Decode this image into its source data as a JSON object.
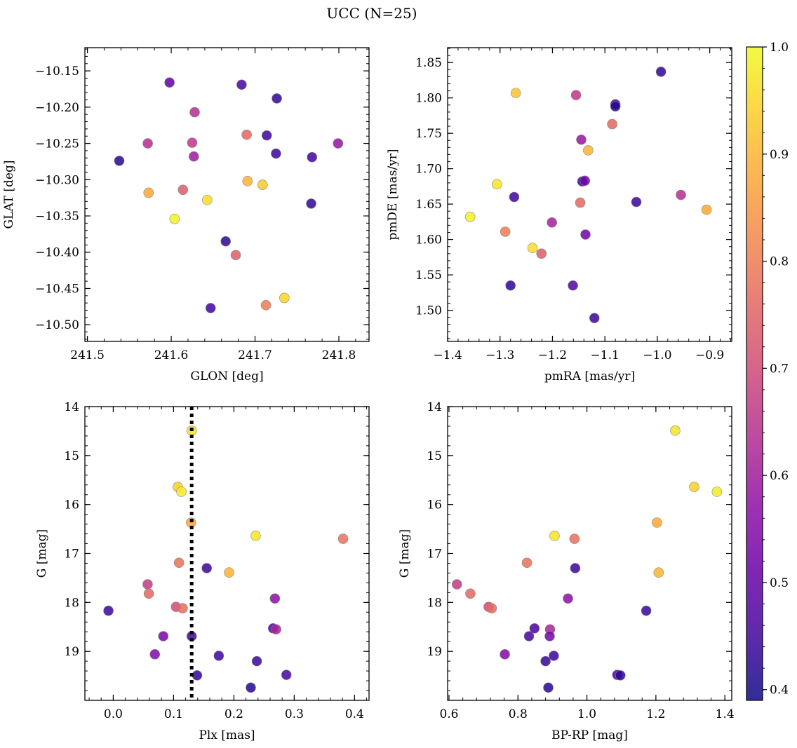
{
  "title": "UCC (N=25)",
  "colorbar": {
    "colormap": "plasma",
    "vmin": 0.39,
    "vmax": 1.0,
    "ticks": [
      0.4,
      0.5,
      0.6,
      0.7,
      0.8,
      0.9,
      1.0
    ],
    "tick_labels": [
      "0.4",
      "0.5",
      "0.6",
      "0.7",
      "0.8",
      "0.9",
      "1.0"
    ]
  },
  "chart_data": [
    {
      "type": "scatter",
      "name": "glon-glat",
      "xlabel": "GLON [deg]",
      "ylabel": "GLAT [deg]",
      "xlim": [
        241.497,
        241.836
      ],
      "ylim": [
        -10.523,
        -10.118
      ],
      "xticks": [
        241.5,
        241.6,
        241.7,
        241.8
      ],
      "xtick_labels": [
        "241.5",
        "241.6",
        "241.7",
        "241.8"
      ],
      "yticks": [
        -10.15,
        -10.2,
        -10.25,
        -10.3,
        -10.35,
        -10.4,
        -10.45,
        -10.5
      ],
      "ytick_labels": [
        "−10.15",
        "−10.20",
        "−10.25",
        "−10.30",
        "−10.35",
        "−10.40",
        "−10.45",
        "−10.50"
      ],
      "points": [
        {
          "x": 241.538,
          "y": -10.274,
          "c": 0.42
        },
        {
          "x": 241.598,
          "y": -10.166,
          "c": 0.5
        },
        {
          "x": 241.684,
          "y": -10.169,
          "c": 0.46
        },
        {
          "x": 241.726,
          "y": -10.188,
          "c": 0.43
        },
        {
          "x": 241.628,
          "y": -10.207,
          "c": 0.64
        },
        {
          "x": 241.572,
          "y": -10.25,
          "c": 0.64
        },
        {
          "x": 241.625,
          "y": -10.249,
          "c": 0.66
        },
        {
          "x": 241.627,
          "y": -10.268,
          "c": 0.6
        },
        {
          "x": 241.69,
          "y": -10.238,
          "c": 0.76
        },
        {
          "x": 241.714,
          "y": -10.239,
          "c": 0.45
        },
        {
          "x": 241.725,
          "y": -10.264,
          "c": 0.44
        },
        {
          "x": 241.768,
          "y": -10.269,
          "c": 0.45
        },
        {
          "x": 241.799,
          "y": -10.25,
          "c": 0.58
        },
        {
          "x": 241.573,
          "y": -10.318,
          "c": 0.88
        },
        {
          "x": 241.614,
          "y": -10.314,
          "c": 0.74
        },
        {
          "x": 241.691,
          "y": -10.302,
          "c": 0.9
        },
        {
          "x": 241.709,
          "y": -10.307,
          "c": 0.93
        },
        {
          "x": 241.643,
          "y": -10.328,
          "c": 0.96
        },
        {
          "x": 241.604,
          "y": -10.354,
          "c": 0.99
        },
        {
          "x": 241.767,
          "y": -10.333,
          "c": 0.43
        },
        {
          "x": 241.665,
          "y": -10.385,
          "c": 0.43
        },
        {
          "x": 241.677,
          "y": -10.404,
          "c": 0.74
        },
        {
          "x": 241.647,
          "y": -10.477,
          "c": 0.45
        },
        {
          "x": 241.713,
          "y": -10.473,
          "c": 0.8
        },
        {
          "x": 241.735,
          "y": -10.463,
          "c": 0.95
        }
      ]
    },
    {
      "type": "scatter",
      "name": "pmra-pmde",
      "xlabel": "pmRA [mas/yr]",
      "ylabel": "pmDE [mas/yr]",
      "xlim": [
        -1.4,
        -0.858
      ],
      "ylim": [
        1.456,
        1.871
      ],
      "xticks": [
        -1.4,
        -1.3,
        -1.2,
        -1.1,
        -1.0,
        -0.9
      ],
      "xtick_labels": [
        "−1.4",
        "−1.3",
        "−1.2",
        "−1.1",
        "−1.0",
        "−0.9"
      ],
      "yticks": [
        1.5,
        1.55,
        1.6,
        1.65,
        1.7,
        1.75,
        1.8,
        1.85
      ],
      "ytick_labels": [
        "1.50",
        "1.55",
        "1.60",
        "1.65",
        "1.70",
        "1.75",
        "1.80",
        "1.85"
      ],
      "points": [
        {
          "x": -0.993,
          "y": 1.837,
          "c": 0.43
        },
        {
          "x": -1.27,
          "y": 1.807,
          "c": 0.92
        },
        {
          "x": -1.155,
          "y": 1.804,
          "c": 0.66
        },
        {
          "x": -1.08,
          "y": 1.791,
          "c": 0.43
        },
        {
          "x": -1.08,
          "y": 1.788,
          "c": 0.42
        },
        {
          "x": -1.086,
          "y": 1.763,
          "c": 0.76
        },
        {
          "x": -1.145,
          "y": 1.741,
          "c": 0.59
        },
        {
          "x": -1.132,
          "y": 1.726,
          "c": 0.9
        },
        {
          "x": -1.143,
          "y": 1.682,
          "c": 0.43
        },
        {
          "x": -1.138,
          "y": 1.683,
          "c": 0.53
        },
        {
          "x": -1.306,
          "y": 1.678,
          "c": 0.97
        },
        {
          "x": -1.357,
          "y": 1.632,
          "c": 0.99
        },
        {
          "x": -1.273,
          "y": 1.66,
          "c": 0.45
        },
        {
          "x": -1.147,
          "y": 1.652,
          "c": 0.76
        },
        {
          "x": -1.04,
          "y": 1.653,
          "c": 0.44
        },
        {
          "x": -0.955,
          "y": 1.663,
          "c": 0.64
        },
        {
          "x": -0.906,
          "y": 1.642,
          "c": 0.88
        },
        {
          "x": -1.201,
          "y": 1.624,
          "c": 0.61
        },
        {
          "x": -1.29,
          "y": 1.611,
          "c": 0.8
        },
        {
          "x": -1.137,
          "y": 1.607,
          "c": 0.52
        },
        {
          "x": -1.238,
          "y": 1.588,
          "c": 0.96
        },
        {
          "x": -1.221,
          "y": 1.58,
          "c": 0.74
        },
        {
          "x": -1.28,
          "y": 1.535,
          "c": 0.43
        },
        {
          "x": -1.161,
          "y": 1.535,
          "c": 0.48
        },
        {
          "x": -1.12,
          "y": 1.489,
          "c": 0.44
        }
      ]
    },
    {
      "type": "scatter",
      "name": "plx-g",
      "xlabel": "Plx [mas]",
      "ylabel": "G [mag]",
      "xlim": [
        -0.047,
        0.424
      ],
      "ylim": [
        20.0,
        14.0
      ],
      "y_inverted": true,
      "vertical_line": {
        "x": 0.13,
        "style": "dotted"
      },
      "xticks": [
        0.0,
        0.1,
        0.2,
        0.3,
        0.4
      ],
      "xtick_labels": [
        "0.0",
        "0.1",
        "0.2",
        "0.3",
        "0.4"
      ],
      "yticks": [
        14,
        15,
        16,
        17,
        18,
        19
      ],
      "ytick_labels": [
        "14",
        "15",
        "16",
        "17",
        "18",
        "19"
      ],
      "points": [
        {
          "x": 0.13,
          "y": 14.49,
          "c": 0.97
        },
        {
          "x": 0.107,
          "y": 15.64,
          "c": 0.94
        },
        {
          "x": 0.113,
          "y": 15.74,
          "c": 0.98
        },
        {
          "x": 0.129,
          "y": 16.37,
          "c": 0.88
        },
        {
          "x": 0.236,
          "y": 16.64,
          "c": 0.97
        },
        {
          "x": 0.381,
          "y": 16.7,
          "c": 0.78
        },
        {
          "x": 0.109,
          "y": 17.19,
          "c": 0.78
        },
        {
          "x": 0.155,
          "y": 17.3,
          "c": 0.44
        },
        {
          "x": 0.192,
          "y": 17.39,
          "c": 0.9
        },
        {
          "x": 0.057,
          "y": 17.63,
          "c": 0.67
        },
        {
          "x": 0.059,
          "y": 17.82,
          "c": 0.76
        },
        {
          "x": 0.268,
          "y": 17.92,
          "c": 0.57
        },
        {
          "x": 0.104,
          "y": 18.09,
          "c": 0.7
        },
        {
          "x": 0.115,
          "y": 18.12,
          "c": 0.77
        },
        {
          "x": -0.008,
          "y": 18.17,
          "c": 0.44
        },
        {
          "x": 0.265,
          "y": 18.53,
          "c": 0.46
        },
        {
          "x": 0.27,
          "y": 18.55,
          "c": 0.62
        },
        {
          "x": 0.083,
          "y": 18.69,
          "c": 0.53
        },
        {
          "x": 0.13,
          "y": 18.69,
          "c": 0.46
        },
        {
          "x": 0.069,
          "y": 19.06,
          "c": 0.55
        },
        {
          "x": 0.175,
          "y": 19.09,
          "c": 0.45
        },
        {
          "x": 0.238,
          "y": 19.2,
          "c": 0.44
        },
        {
          "x": 0.139,
          "y": 19.49,
          "c": 0.43
        },
        {
          "x": 0.287,
          "y": 19.48,
          "c": 0.46
        },
        {
          "x": 0.228,
          "y": 19.74,
          "c": 0.42
        }
      ]
    },
    {
      "type": "scatter",
      "name": "bprp-g",
      "xlabel": "BP-RP [mag]",
      "ylabel": "G [mag]",
      "xlim": [
        0.596,
        1.42
      ],
      "ylim": [
        20.0,
        14.0
      ],
      "y_inverted": true,
      "xticks": [
        0.6,
        0.8,
        1.0,
        1.2,
        1.4
      ],
      "xtick_labels": [
        "0.6",
        "0.8",
        "1.0",
        "1.2",
        "1.4"
      ],
      "yticks": [
        14,
        15,
        16,
        17,
        18,
        19
      ],
      "ytick_labels": [
        "14",
        "15",
        "16",
        "17",
        "18",
        "19"
      ],
      "points": [
        {
          "x": 1.256,
          "y": 14.49,
          "c": 0.97
        },
        {
          "x": 1.311,
          "y": 15.64,
          "c": 0.94
        },
        {
          "x": 1.377,
          "y": 15.74,
          "c": 0.98
        },
        {
          "x": 1.203,
          "y": 16.37,
          "c": 0.88
        },
        {
          "x": 0.906,
          "y": 16.64,
          "c": 0.97
        },
        {
          "x": 0.964,
          "y": 16.7,
          "c": 0.78
        },
        {
          "x": 0.826,
          "y": 17.19,
          "c": 0.78
        },
        {
          "x": 0.966,
          "y": 17.3,
          "c": 0.44
        },
        {
          "x": 1.208,
          "y": 17.39,
          "c": 0.9
        },
        {
          "x": 0.623,
          "y": 17.63,
          "c": 0.67
        },
        {
          "x": 0.662,
          "y": 17.82,
          "c": 0.76
        },
        {
          "x": 0.945,
          "y": 17.92,
          "c": 0.57
        },
        {
          "x": 0.715,
          "y": 18.09,
          "c": 0.7
        },
        {
          "x": 0.724,
          "y": 18.12,
          "c": 0.77
        },
        {
          "x": 1.172,
          "y": 18.17,
          "c": 0.44
        },
        {
          "x": 0.848,
          "y": 18.53,
          "c": 0.46
        },
        {
          "x": 0.893,
          "y": 18.55,
          "c": 0.62
        },
        {
          "x": 0.832,
          "y": 18.69,
          "c": 0.46
        },
        {
          "x": 0.892,
          "y": 18.69,
          "c": 0.53
        },
        {
          "x": 0.762,
          "y": 19.06,
          "c": 0.55
        },
        {
          "x": 0.904,
          "y": 19.09,
          "c": 0.45
        },
        {
          "x": 0.88,
          "y": 19.2,
          "c": 0.44
        },
        {
          "x": 1.088,
          "y": 19.48,
          "c": 0.46
        },
        {
          "x": 1.097,
          "y": 19.49,
          "c": 0.43
        },
        {
          "x": 0.888,
          "y": 19.74,
          "c": 0.42
        }
      ]
    }
  ]
}
